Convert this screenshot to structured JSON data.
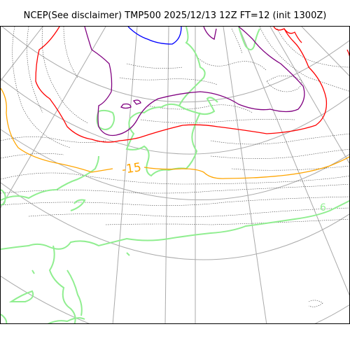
{
  "title": "NCEP(See disclaimer) TMP500 2025/12/13 12Z FT=12 (init 1300Z)",
  "colors": {
    "graticule": "#aaaaaa",
    "coastline": "#90ee90",
    "isotherm_minor": "#444444",
    "isotherm_orange": "#ffa500",
    "isotherm_red": "#ff0000",
    "isotherm_purple": "#800080",
    "isotherm_blue": "#0000ff"
  },
  "contour_labels": {
    "orange": "-15",
    "coast": "6"
  }
}
